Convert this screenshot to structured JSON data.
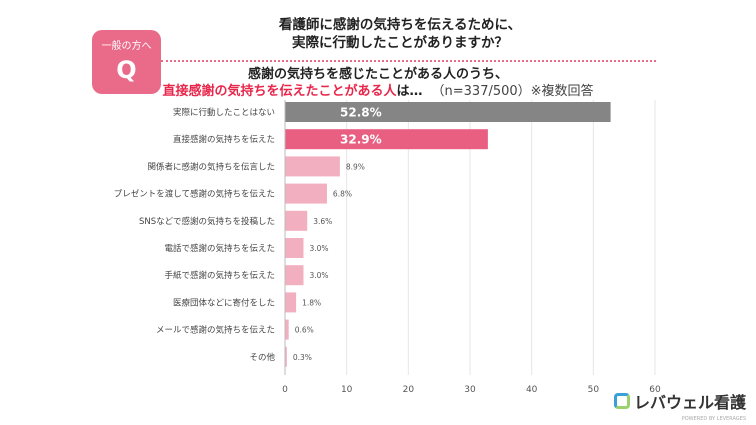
{
  "header": {
    "category": "一般の方へ",
    "q_mark": "Q",
    "question_line1": "看護師に感謝の気持ちを伝えるために、",
    "question_line2": "実際に行動したことがありますか？",
    "subtitle_line1": "感謝の気持ちを感じたことがある人のうち、",
    "subtitle_red": "直接感謝の気持ちを伝えたことがある人",
    "subtitle_after": "は…",
    "subtitle_note": "（n=337/500）※複数回答"
  },
  "brand": {
    "name": "レバウェル看護",
    "tagline": "POWERED BY LEVERAGES"
  },
  "chart_data": {
    "type": "bar",
    "orientation": "horizontal",
    "categories": [
      "実際に行動したことはない",
      "直接感謝の気持ちを伝えた",
      "関係者に感謝の気持ちを伝言した",
      "プレゼントを渡して感謝の気持ちを伝えた",
      "SNSなどで感謝の気持ちを投稿した",
      "電話で感謝の気持ちを伝えた",
      "手紙で感謝の気持ちを伝えた",
      "医療団体などに寄付をした",
      "メールで感謝の気持ちを伝えた",
      "その他"
    ],
    "values": [
      52.8,
      32.9,
      8.9,
      6.8,
      3.6,
      3.0,
      3.0,
      1.8,
      0.6,
      0.3
    ],
    "value_labels": [
      "52.8%",
      "32.9%",
      "8.9%",
      "6.8%",
      "3.6%",
      "3.0%",
      "3.0%",
      "1.8%",
      "0.6%",
      "0.3%"
    ],
    "colors": [
      "#858585",
      "#e85f82",
      "#f2afc0",
      "#f2afc0",
      "#f2afc0",
      "#f2afc0",
      "#f2afc0",
      "#f2afc0",
      "#f2afc0",
      "#f2afc0"
    ],
    "xlim": [
      0,
      60
    ],
    "xticks": [
      0,
      10,
      20,
      30,
      40,
      50,
      60
    ],
    "grid": true,
    "title": "",
    "xlabel": "",
    "ylabel": ""
  }
}
